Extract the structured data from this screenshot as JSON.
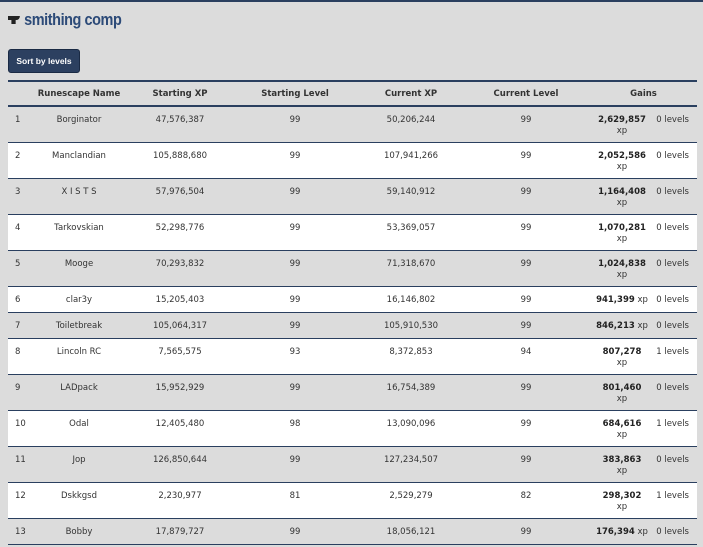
{
  "header": {
    "title": "smithing comp",
    "icon": "anvil-icon"
  },
  "toolbar": {
    "sort_label": "Sort by levels"
  },
  "table": {
    "columns": [
      "",
      "Runescape Name",
      "Starting XP",
      "Starting Level",
      "Current XP",
      "Current Level",
      "Gains"
    ],
    "rows": [
      {
        "rank": "1",
        "name": "Borginator",
        "start_xp": "47,576,387",
        "start_lvl": "99",
        "cur_xp": "50,206,244",
        "cur_lvl": "99",
        "gain_xp": "2,629,857",
        "xp_unit": "xp",
        "gain_lvl": "0 levels"
      },
      {
        "rank": "2",
        "name": "Manclandian",
        "start_xp": "105,888,680",
        "start_lvl": "99",
        "cur_xp": "107,941,266",
        "cur_lvl": "99",
        "gain_xp": "2,052,586",
        "xp_unit": "xp",
        "gain_lvl": "0 levels"
      },
      {
        "rank": "3",
        "name": "X I S T S",
        "start_xp": "57,976,504",
        "start_lvl": "99",
        "cur_xp": "59,140,912",
        "cur_lvl": "99",
        "gain_xp": "1,164,408",
        "xp_unit": "xp",
        "gain_lvl": "0 levels"
      },
      {
        "rank": "4",
        "name": "Tarkovskian",
        "start_xp": "52,298,776",
        "start_lvl": "99",
        "cur_xp": "53,369,057",
        "cur_lvl": "99",
        "gain_xp": "1,070,281",
        "xp_unit": "xp",
        "gain_lvl": "0 levels"
      },
      {
        "rank": "5",
        "name": "Mooge",
        "start_xp": "70,293,832",
        "start_lvl": "99",
        "cur_xp": "71,318,670",
        "cur_lvl": "99",
        "gain_xp": "1,024,838",
        "xp_unit": "xp",
        "gain_lvl": "0 levels"
      },
      {
        "rank": "6",
        "name": "clar3y",
        "start_xp": "15,205,403",
        "start_lvl": "99",
        "cur_xp": "16,146,802",
        "cur_lvl": "99",
        "gain_xp": "941,399",
        "xp_unit": "xp",
        "gain_lvl": "0 levels"
      },
      {
        "rank": "7",
        "name": "Toiletbreak",
        "start_xp": "105,064,317",
        "start_lvl": "99",
        "cur_xp": "105,910,530",
        "cur_lvl": "99",
        "gain_xp": "846,213",
        "xp_unit": "xp",
        "gain_lvl": "0 levels"
      },
      {
        "rank": "8",
        "name": "Lincoln RC",
        "start_xp": "7,565,575",
        "start_lvl": "93",
        "cur_xp": "8,372,853",
        "cur_lvl": "94",
        "gain_xp": "807,278",
        "xp_unit": "xp",
        "gain_lvl": "1 levels"
      },
      {
        "rank": "9",
        "name": "LADpack",
        "start_xp": "15,952,929",
        "start_lvl": "99",
        "cur_xp": "16,754,389",
        "cur_lvl": "99",
        "gain_xp": "801,460",
        "xp_unit": "xp",
        "gain_lvl": "0 levels"
      },
      {
        "rank": "10",
        "name": "Odal",
        "start_xp": "12,405,480",
        "start_lvl": "98",
        "cur_xp": "13,090,096",
        "cur_lvl": "99",
        "gain_xp": "684,616",
        "xp_unit": "xp",
        "gain_lvl": "1 levels"
      },
      {
        "rank": "11",
        "name": "Jop",
        "start_xp": "126,850,644",
        "start_lvl": "99",
        "cur_xp": "127,234,507",
        "cur_lvl": "99",
        "gain_xp": "383,863",
        "xp_unit": "xp",
        "gain_lvl": "0 levels"
      },
      {
        "rank": "12",
        "name": "Dskkgsd",
        "start_xp": "2,230,977",
        "start_lvl": "81",
        "cur_xp": "2,529,279",
        "cur_lvl": "82",
        "gain_xp": "298,302",
        "xp_unit": "xp",
        "gain_lvl": "1 levels"
      },
      {
        "rank": "13",
        "name": "Bobby",
        "start_xp": "17,879,727",
        "start_lvl": "99",
        "cur_xp": "18,056,121",
        "cur_lvl": "99",
        "gain_xp": "176,394",
        "xp_unit": "xp",
        "gain_lvl": "0 levels"
      }
    ]
  }
}
